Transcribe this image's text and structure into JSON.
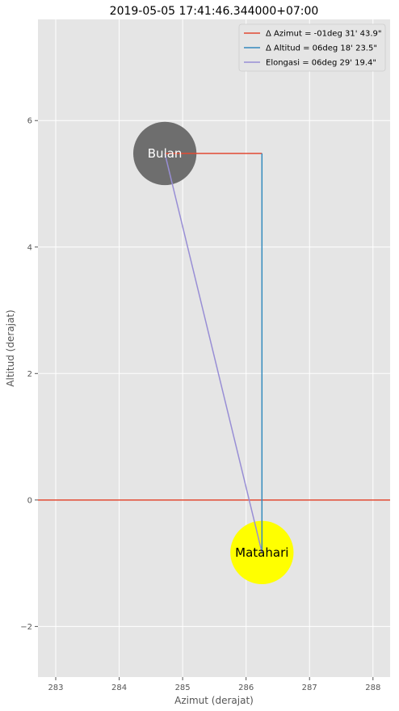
{
  "chart_data": {
    "type": "scatter",
    "title": "2019-05-05 17:41:46.344000+07:00",
    "xlabel": "Azimut (derajat)",
    "ylabel": "Altitud (derajat)",
    "xlim": [
      282.72,
      288.27
    ],
    "ylim": [
      -2.8,
      7.6
    ],
    "xticks": [
      283,
      284,
      285,
      286,
      287,
      288
    ],
    "yticks": [
      -2,
      0,
      2,
      4,
      6
    ],
    "grid": true,
    "legend_position": "top-right",
    "horizon": {
      "y": 0,
      "color": "#e24a33"
    },
    "bodies": [
      {
        "name": "Bulan",
        "x": 284.72,
        "y": 5.48,
        "radius_deg": 0.5,
        "fill": "#6e6e6e",
        "text_color": "#ffffff"
      },
      {
        "name": "Matahari",
        "x": 286.25,
        "y": -0.83,
        "radius_deg": 0.5,
        "fill": "#ffff00",
        "text_color": "#000000"
      }
    ],
    "series": [
      {
        "name": "Δ Azimut = -01deg 31' 43.9\"",
        "color": "#e24a33",
        "x": [
          284.72,
          286.25
        ],
        "y": [
          5.48,
          5.48
        ]
      },
      {
        "name": "Δ Altitud = 06deg 18' 23.5\"",
        "color": "#348abd",
        "x": [
          286.25,
          286.25
        ],
        "y": [
          5.48,
          -0.83
        ]
      },
      {
        "name": "Elongasi = 06deg 29' 19.4\"",
        "color": "#988ed5",
        "x": [
          284.72,
          286.25
        ],
        "y": [
          5.48,
          -0.83
        ]
      }
    ]
  }
}
